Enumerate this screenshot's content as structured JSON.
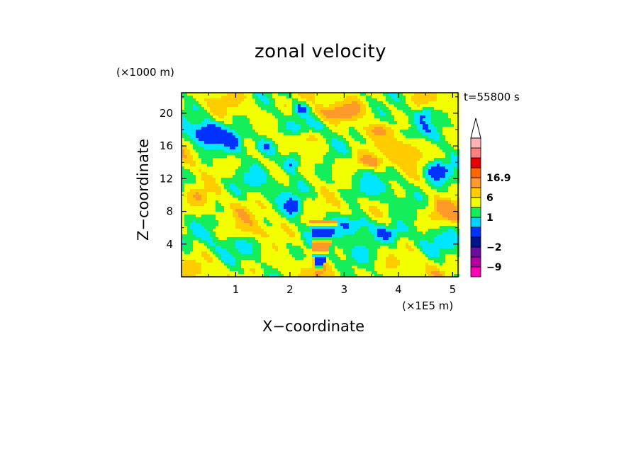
{
  "chart_data": {
    "type": "heatmap",
    "title": "zonal velocity",
    "xlabel": "X−coordinate",
    "ylabel": "Z−coordinate",
    "x_unit_label": "(×1E5 m)",
    "z_unit_label": "(×1000 m)",
    "time_label": "t=55800 s",
    "xlim": [
      0,
      5.1
    ],
    "ylim": [
      0,
      22.5
    ],
    "x_ticks": [
      {
        "value": 1,
        "label": "1"
      },
      {
        "value": 2,
        "label": "2"
      },
      {
        "value": 3,
        "label": "3"
      },
      {
        "value": 4,
        "label": "4"
      },
      {
        "value": 5,
        "label": "5"
      }
    ],
    "y_ticks": [
      {
        "value": 4,
        "label": "4"
      },
      {
        "value": 8,
        "label": "8"
      },
      {
        "value": 12,
        "label": "12"
      },
      {
        "value": 16,
        "label": "16"
      },
      {
        "value": 20,
        "label": "20"
      }
    ],
    "colorbar": {
      "labels": [
        {
          "text": "16.9",
          "after_level": 10
        },
        {
          "text": "6",
          "after_level": 8
        },
        {
          "text": "1",
          "after_level": 6
        },
        {
          "text": "−2",
          "after_level": 3
        },
        {
          "text": "−9",
          "after_level": 1
        }
      ],
      "levels": [
        {
          "color": "#ff00b4"
        },
        {
          "color": "#b400a0"
        },
        {
          "color": "#6a0d9e"
        },
        {
          "color": "#00148c"
        },
        {
          "color": "#0032ff"
        },
        {
          "color": "#00d2ff"
        },
        {
          "color": "#14ee5a"
        },
        {
          "color": "#f2ff00"
        },
        {
          "color": "#ffcc00"
        },
        {
          "color": "#ff9a2a"
        },
        {
          "color": "#ff6600"
        },
        {
          "color": "#e60000"
        },
        {
          "color": "#ff8080"
        },
        {
          "color": "#ffb4b4"
        },
        {
          "color": "#ffffff"
        }
      ]
    },
    "field_color_classes": {
      "strong_negative": "#0032ff",
      "negative": "#00e6ff",
      "weak": "#14ee5a",
      "weak_positive": "#f2ff00",
      "positive": "#ffcc00",
      "strong_positive": "#ff9a2a"
    },
    "features": [
      {
        "x": 0.45,
        "z": 17.5,
        "amp": -1.6,
        "sx": 0.25,
        "sz": 1.3
      },
      {
        "x": 0.95,
        "z": 16.5,
        "amp": -1.2,
        "sx": 0.25,
        "sz": 1.5
      },
      {
        "x": 1.55,
        "z": 16.0,
        "amp": -1.3,
        "sx": 0.22,
        "sz": 1.2
      },
      {
        "x": 2.05,
        "z": 14.0,
        "amp": -2.1,
        "sx": 0.18,
        "sz": 1.2
      },
      {
        "x": 2.2,
        "z": 20.5,
        "amp": -1.5,
        "sx": 0.15,
        "sz": 0.8
      },
      {
        "x": 2.05,
        "z": 8.5,
        "amp": -1.6,
        "sx": 0.15,
        "sz": 1.0
      },
      {
        "x": 3.2,
        "z": 6.5,
        "amp": -1.7,
        "sx": 0.35,
        "sz": 1.3
      },
      {
        "x": 3.8,
        "z": 5.3,
        "amp": -1.2,
        "sx": 0.3,
        "sz": 1.0
      },
      {
        "x": 4.7,
        "z": 13.0,
        "amp": -1.9,
        "sx": 0.22,
        "sz": 1.2
      },
      {
        "x": 4.5,
        "z": 20.0,
        "amp": -1.3,
        "sx": 0.15,
        "sz": 0.8
      },
      {
        "x": 2.8,
        "z": 20.0,
        "amp": 0.9,
        "sx": 0.6,
        "sz": 1.0
      },
      {
        "x": 2.2,
        "z": 17.0,
        "amp": 1.0,
        "sx": 0.35,
        "sz": 0.8
      },
      {
        "x": 3.6,
        "z": 18.0,
        "amp": 1.0,
        "sx": 0.4,
        "sz": 0.9
      },
      {
        "x": 4.2,
        "z": 16.0,
        "amp": 1.0,
        "sx": 0.3,
        "sz": 1.2
      },
      {
        "x": 3.5,
        "z": 14.0,
        "amp": 0.8,
        "sx": 0.5,
        "sz": 0.8
      },
      {
        "x": 4.9,
        "z": 8.0,
        "amp": 0.9,
        "sx": 0.3,
        "sz": 1.5
      },
      {
        "x": 1.3,
        "z": 5.5,
        "amp": 0.7,
        "sx": 0.4,
        "sz": 1.0
      },
      {
        "x": 0.3,
        "z": 10.0,
        "amp": 0.8,
        "sx": 0.3,
        "sz": 1.5
      }
    ]
  }
}
